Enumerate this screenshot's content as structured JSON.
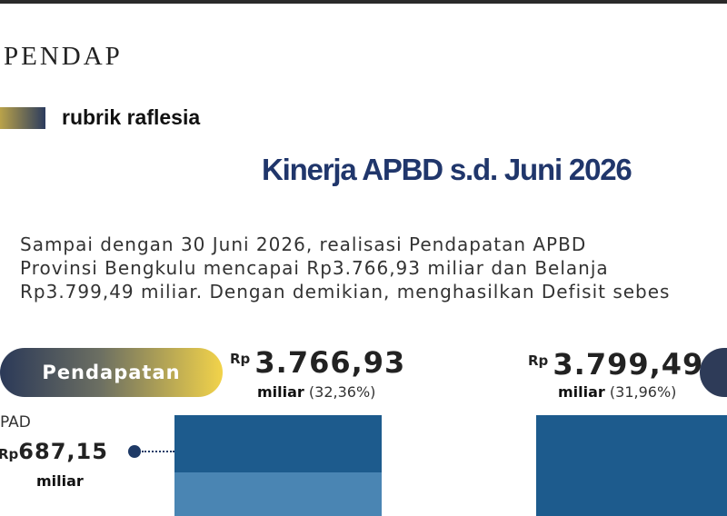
{
  "header": {
    "brand": "PENDAP",
    "rubric": "rubrik raflesia"
  },
  "title": "Kinerja APBD s.d. Juni 2026",
  "paragraph": {
    "lines": [
      "Sampai dengan 30 Juni 2026, realisasi Pendapatan APBD",
      "Provinsi Bengkulu mencapai Rp3.766,93 miliar dan Belanja",
      "Rp3.799,49 miliar. Dengan demikian, menghasilkan Defisit sebes"
    ]
  },
  "pendapatan": {
    "label": "Pendapatan",
    "currency": "Rp",
    "amount": "3.766,93",
    "unit": "miliar",
    "share": "(32,36%)",
    "pad": {
      "label": "PAD",
      "currency": "Rp",
      "amount": "687,15",
      "unit": "miliar"
    }
  },
  "belanja": {
    "currency": "Rp",
    "amount": "3.799,49",
    "unit": "miliar",
    "share": "(31,96%)"
  }
}
